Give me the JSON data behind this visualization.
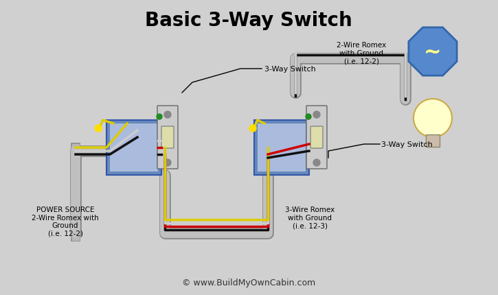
{
  "title": "Basic 3-Way Switch",
  "background_color": "#d0d0d0",
  "border_color": "#a0a0a0",
  "copyright": "© www.BuildMyOwnCabin.com",
  "labels": {
    "power_source": "POWER SOURCE\n2-Wire Romex with\nGround\n(i.e. 12-2)",
    "romex_2wire": "2-Wire Romex\nwith Ground\n(i.e. 12-2)",
    "romex_3wire": "3-Wire Romex\nwith Ground\n(i.e. 12-3)",
    "switch1": "3-Way Switch",
    "switch2": "3-Way Switch"
  },
  "colors": {
    "black_wire": "#111111",
    "white_wire": "#cccccc",
    "red_wire": "#cc0000",
    "yellow_wire": "#ddcc00",
    "green_wire": "#228B22",
    "gray_conduit": "#aaaaaa",
    "box_blue": "#5588cc",
    "box_face": "#aabbdd",
    "switch_body": "#cccccc",
    "switch_metal": "#999999",
    "light_blue": "#7799cc",
    "light_yellow": "#ffff99",
    "light_base": "#d0c0a0",
    "octagon_blue": "#4477bb",
    "octagon_fill": "#88aadd"
  }
}
